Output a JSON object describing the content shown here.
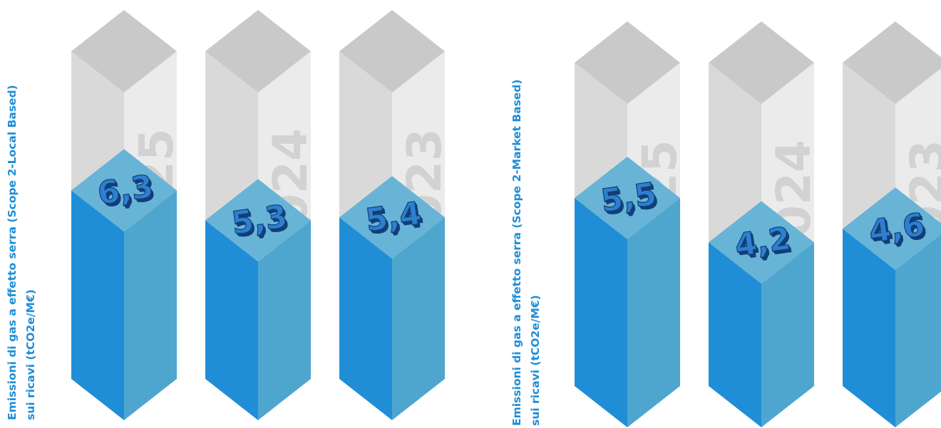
{
  "colors": {
    "value_blue": "#1f8ed6",
    "value_top": "#67b4d6",
    "value_right": "#4ea6cf",
    "glass_top": "#c9c9c9",
    "glass_left": "#d9d9d9",
    "glass_right": "#ebebeb",
    "year_text": "#d2d2d2",
    "label_text": "#1f8ed6",
    "number_front": "#2e7fcf",
    "number_shadow": "#123f78"
  },
  "chart_data": [
    {
      "type": "bar",
      "title": "Emissioni di gas a effetto serra (Scope 2-Local Based)",
      "ylabel_line1": "Emissioni di gas a effetto serra (Scope 2-Local Based)",
      "ylabel_line2": "sui ricavi (tCO2e/M€)",
      "categories": [
        "2025",
        "2024",
        "2023"
      ],
      "values": [
        6.3,
        5.3,
        5.4
      ],
      "value_labels": [
        "6,3",
        "5,3",
        "5,4"
      ]
    },
    {
      "type": "bar",
      "title": "Emissioni di gas a effetto serra (Scope 2-Market Based)",
      "ylabel_line1": "Emissioni di gas a effetto serra (Scope 2-Market Based)",
      "ylabel_line2": "sui ricavi (tCO2e/M€)",
      "categories": [
        "2025",
        "2024",
        "2023"
      ],
      "values": [
        5.5,
        4.2,
        4.6
      ],
      "value_labels": [
        "5,5",
        "4,2",
        "4,6"
      ]
    }
  ]
}
